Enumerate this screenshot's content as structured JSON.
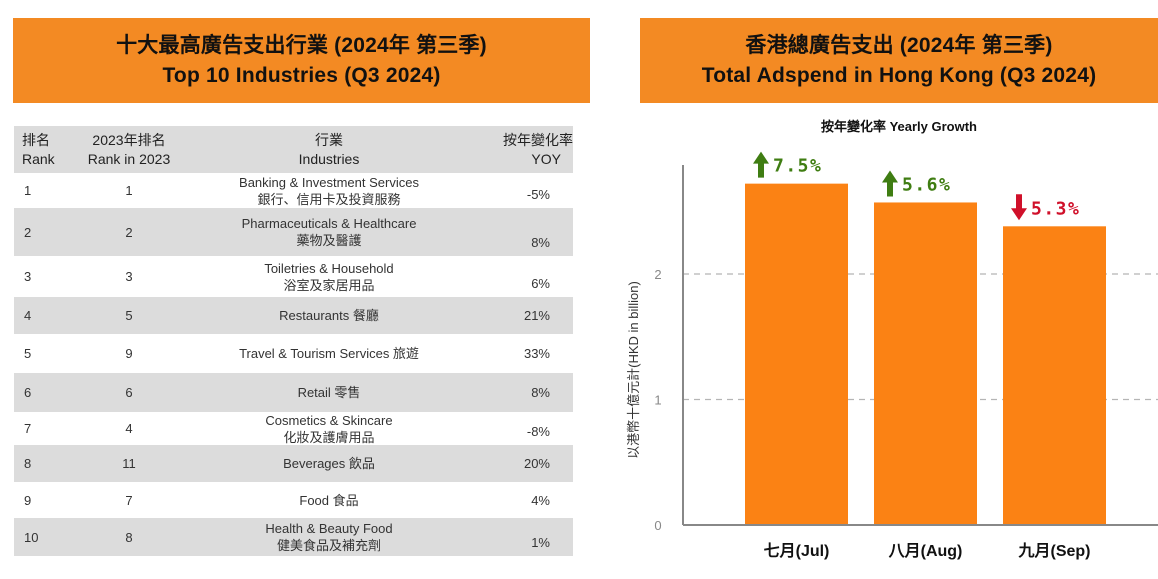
{
  "left_panel": {
    "title_zh": "十大最高廣告支出行業 (2024年 第三季)",
    "title_en": "Top 10 Industries (Q3 2024)",
    "table": {
      "headers": {
        "rank": [
          "排名",
          "Rank"
        ],
        "rank_2023": [
          "2023年排名",
          "Rank in 2023"
        ],
        "industry": [
          "行業",
          "Industries"
        ],
        "yoy": [
          "按年變化率",
          "YOY"
        ]
      },
      "rows": [
        {
          "rank": "1",
          "rank_2023": "1",
          "industry_en": "Banking & Investment Services",
          "industry_zh": "銀行、信用卡及投資服務",
          "yoy": "-5%"
        },
        {
          "rank": "2",
          "rank_2023": "2",
          "industry_en": "Pharmaceuticals & Healthcare",
          "industry_zh": "藥物及醫護",
          "yoy": "8%"
        },
        {
          "rank": "3",
          "rank_2023": "3",
          "industry_en": "Toiletries & Household",
          "industry_zh": "浴室及家居用品",
          "yoy": "6%"
        },
        {
          "rank": "4",
          "rank_2023": "5",
          "industry_en": "Restaurants 餐廳",
          "industry_zh": "",
          "yoy": "21%"
        },
        {
          "rank": "5",
          "rank_2023": "9",
          "industry_en": "Travel & Tourism Services 旅遊",
          "industry_zh": "",
          "yoy": "33%"
        },
        {
          "rank": "6",
          "rank_2023": "6",
          "industry_en": "Retail 零售",
          "industry_zh": "",
          "yoy": "8%"
        },
        {
          "rank": "7",
          "rank_2023": "4",
          "industry_en": "Cosmetics & Skincare",
          "industry_zh": "化妝及護膚用品",
          "yoy": "-8%"
        },
        {
          "rank": "8",
          "rank_2023": "11",
          "industry_en": "Beverages 飲品",
          "industry_zh": "",
          "yoy": "20%"
        },
        {
          "rank": "9",
          "rank_2023": "7",
          "industry_en": "Food 食品",
          "industry_zh": "",
          "yoy": "4%"
        },
        {
          "rank": "10",
          "rank_2023": "8",
          "industry_en": "Health & Beauty Food",
          "industry_zh": "健美食品及補充劑",
          "yoy": "1%"
        }
      ]
    }
  },
  "right_panel": {
    "title_zh": "香港總廣告支出 (2024年 第三季)",
    "title_en": "Total Adspend in Hong Kong (Q3 2024)"
  },
  "colors": {
    "banner": "#f38a23",
    "bar": "#fb8214",
    "up": "#3f7d12",
    "down": "#d0102a",
    "row_shade": "#dcdcdc"
  },
  "chart_data": {
    "type": "bar",
    "title": "按年變化率 Yearly Growth",
    "xlabel": "",
    "ylabel": "以港幣十億元計(HKD in billion)",
    "categories": [
      "七月(Jul)",
      "八月(Aug)",
      "九月(Sep)"
    ],
    "values": [
      2.72,
      2.57,
      2.38
    ],
    "yoy_labels": [
      {
        "text": "7.5%",
        "direction": "up"
      },
      {
        "text": "5.6%",
        "direction": "up"
      },
      {
        "text": "5.3%",
        "direction": "down"
      }
    ],
    "ylim": [
      0,
      3
    ],
    "yticks": [
      0,
      1,
      2
    ],
    "grid": true,
    "grid_style": "dashed"
  }
}
